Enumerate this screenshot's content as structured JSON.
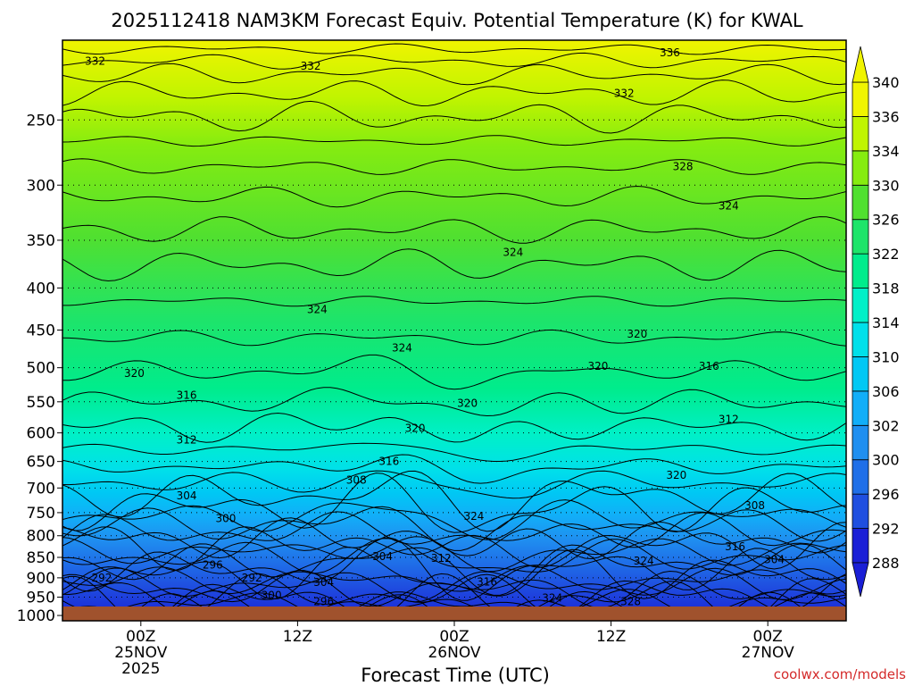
{
  "chart_data": {
    "type": "heatmap",
    "title": "2025112418 NAM3KM Forecast Equiv. Potential Temperature (K) for KWAL",
    "xlabel": "Forecast Time (UTC)",
    "ylabel": "",
    "credit": "coolwx.com/models",
    "x_ticks": [
      {
        "hour": 6,
        "line1": "00Z",
        "line2": "25NOV",
        "line3": "2025"
      },
      {
        "hour": 18,
        "line1": "12Z",
        "line2": "",
        "line3": ""
      },
      {
        "hour": 30,
        "line1": "00Z",
        "line2": "26NOV",
        "line3": ""
      },
      {
        "hour": 42,
        "line1": "12Z",
        "line2": "",
        "line3": ""
      },
      {
        "hour": 54,
        "line1": "00Z",
        "line2": "27NOV",
        "line3": ""
      }
    ],
    "xlim_hours": [
      0,
      60
    ],
    "y_pressure_ticks_hPa": [
      250,
      300,
      350,
      400,
      450,
      500,
      550,
      600,
      650,
      700,
      750,
      800,
      850,
      900,
      950,
      1000
    ],
    "y_tick_labels": [
      "250",
      "300",
      "350",
      "400",
      "450",
      "500",
      "550",
      "600",
      "650",
      "700",
      "750",
      "800",
      "850",
      "900",
      "950",
      "1000"
    ],
    "ylim_hPa": [
      1015,
      200
    ],
    "y_scale": "log-pressure",
    "grid": true,
    "units": "K",
    "colorbar": {
      "levels": [
        288,
        292,
        296,
        300,
        302,
        306,
        310,
        314,
        318,
        322,
        326,
        330,
        334,
        336,
        340
      ],
      "labels": [
        "288",
        "292",
        "296",
        "300",
        "302",
        "306",
        "310",
        "314",
        "318",
        "322",
        "326",
        "330",
        "334",
        "336",
        "340"
      ],
      "colors": [
        "#1a1fd6",
        "#1f4fe0",
        "#1f6fe8",
        "#1f8ff0",
        "#12aef8",
        "#00c8f4",
        "#00e0ea",
        "#00f0c8",
        "#00ec8c",
        "#1ee46a",
        "#50e030",
        "#86ec10",
        "#c0f400",
        "#f0f400"
      ],
      "extend": "both"
    },
    "contour_labels": [
      {
        "text": "332",
        "t": 2.5,
        "p": 212
      },
      {
        "text": "332",
        "t": 19,
        "p": 215
      },
      {
        "text": "336",
        "t": 46.5,
        "p": 207
      },
      {
        "text": "332",
        "t": 43,
        "p": 232
      },
      {
        "text": "328",
        "t": 47.5,
        "p": 285
      },
      {
        "text": "324",
        "t": 51,
        "p": 318
      },
      {
        "text": "324",
        "t": 34.5,
        "p": 362
      },
      {
        "text": "324",
        "t": 19.5,
        "p": 425
      },
      {
        "text": "320",
        "t": 44,
        "p": 455
      },
      {
        "text": "324",
        "t": 26,
        "p": 473
      },
      {
        "text": "320",
        "t": 41,
        "p": 498
      },
      {
        "text": "316",
        "t": 49.5,
        "p": 498
      },
      {
        "text": "320",
        "t": 5.5,
        "p": 508
      },
      {
        "text": "316",
        "t": 9.5,
        "p": 540
      },
      {
        "text": "320",
        "t": 31,
        "p": 552
      },
      {
        "text": "312",
        "t": 51,
        "p": 578
      },
      {
        "text": "320",
        "t": 27,
        "p": 592
      },
      {
        "text": "312",
        "t": 9.5,
        "p": 612
      },
      {
        "text": "316",
        "t": 25,
        "p": 650
      },
      {
        "text": "308",
        "t": 22.5,
        "p": 685
      },
      {
        "text": "320",
        "t": 47,
        "p": 675
      },
      {
        "text": "304",
        "t": 9.5,
        "p": 715
      },
      {
        "text": "308",
        "t": 53,
        "p": 735
      },
      {
        "text": "324",
        "t": 31.5,
        "p": 758
      },
      {
        "text": "300",
        "t": 12.5,
        "p": 762
      },
      {
        "text": "316",
        "t": 51.5,
        "p": 825
      },
      {
        "text": "304",
        "t": 24.5,
        "p": 848
      },
      {
        "text": "312",
        "t": 29,
        "p": 852
      },
      {
        "text": "304",
        "t": 54.5,
        "p": 855
      },
      {
        "text": "324",
        "t": 44.5,
        "p": 858
      },
      {
        "text": "296",
        "t": 11.5,
        "p": 868
      },
      {
        "text": "292",
        "t": 3,
        "p": 900
      },
      {
        "text": "292",
        "t": 14.5,
        "p": 900
      },
      {
        "text": "304",
        "t": 20,
        "p": 912
      },
      {
        "text": "316",
        "t": 32.5,
        "p": 910
      },
      {
        "text": "300",
        "t": 16,
        "p": 945
      },
      {
        "text": "296",
        "t": 20,
        "p": 962
      },
      {
        "text": "324",
        "t": 37.5,
        "p": 952
      },
      {
        "text": "328",
        "t": 43.5,
        "p": 962
      }
    ]
  }
}
